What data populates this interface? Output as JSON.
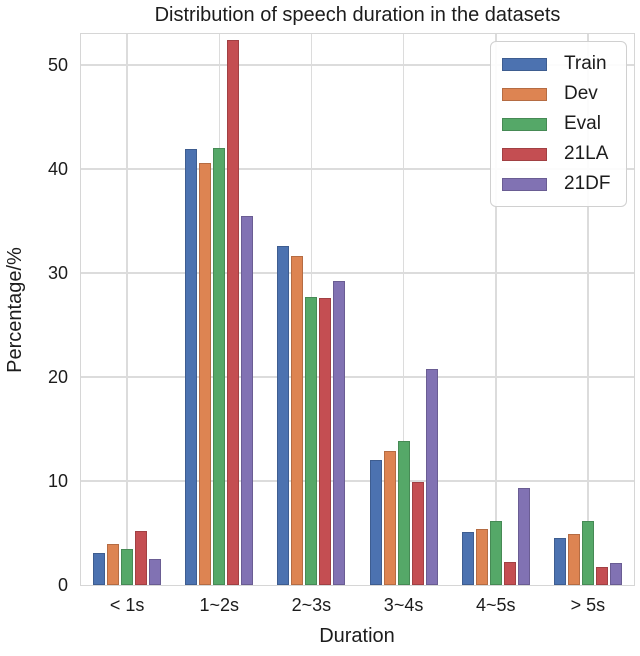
{
  "chart_data": {
    "type": "bar",
    "title": "Distribution of speech duration in the datasets",
    "xlabel": "Duration",
    "ylabel": "Percentage/%",
    "categories": [
      "< 1s",
      "1~2s",
      "2~3s",
      "3~4s",
      "4~5s",
      "> 5s"
    ],
    "series": [
      {
        "name": "Train",
        "color": "#4C72B0",
        "values": [
          3.1,
          41.9,
          32.6,
          12.0,
          5.1,
          4.5
        ]
      },
      {
        "name": "Dev",
        "color": "#DD8452",
        "values": [
          3.9,
          40.6,
          31.6,
          12.9,
          5.4,
          4.9
        ]
      },
      {
        "name": "Eval",
        "color": "#55A868",
        "values": [
          3.5,
          42.0,
          27.7,
          13.9,
          6.2,
          6.2
        ]
      },
      {
        "name": "21LA",
        "color": "#C44E52",
        "values": [
          5.2,
          52.4,
          27.6,
          9.9,
          2.2,
          1.7
        ]
      },
      {
        "name": "21DF",
        "color": "#8172B3",
        "values": [
          2.5,
          35.5,
          29.2,
          20.8,
          9.3,
          2.1
        ]
      }
    ],
    "ylim": [
      0,
      53
    ],
    "yticks": [
      0,
      10,
      20,
      30,
      40,
      50
    ],
    "grid": true,
    "legend_position": "upper right",
    "legend_labels": [
      "Train",
      "Dev",
      "Eval",
      "21LA",
      "21DF"
    ]
  }
}
